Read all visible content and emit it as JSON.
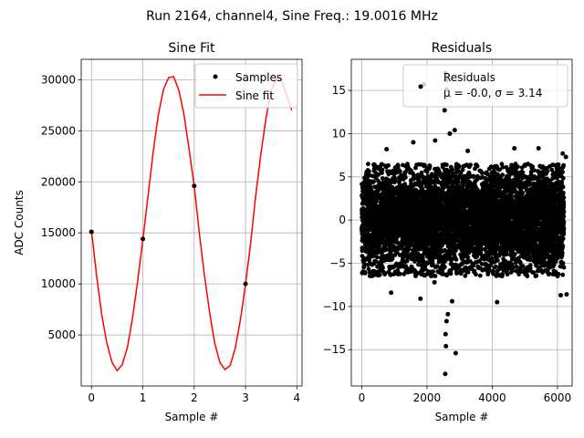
{
  "figure_title": "Run 2164, channel4, Sine Freq.: 19.0016 MHz",
  "colors": {
    "fit": "#ff0000",
    "points": "#000000",
    "grid": "#b0b0b0"
  },
  "chart_data": [
    {
      "type": "line",
      "title": "Sine Fit",
      "xlabel": "Sample #",
      "ylabel": "ADC Counts",
      "xlim": [
        -0.2,
        4.1
      ],
      "ylim": [
        0,
        32000
      ],
      "xticks": [
        0,
        1,
        2,
        3,
        4
      ],
      "yticks": [
        5000,
        10000,
        15000,
        20000,
        25000,
        30000
      ],
      "grid": true,
      "legend": {
        "position": "top-right",
        "entries": [
          "Samples",
          "Sine fit"
        ]
      },
      "series": [
        {
          "name": "Samples",
          "kind": "scatter",
          "x": [
            0,
            1,
            2,
            3
          ],
          "y": [
            15100,
            14400,
            19600,
            10000
          ]
        },
        {
          "name": "Sine fit",
          "kind": "line",
          "x": [
            0,
            0.1,
            0.2,
            0.3,
            0.4,
            0.5,
            0.6,
            0.7,
            0.8,
            0.9,
            1.0,
            1.1,
            1.2,
            1.3,
            1.4,
            1.5,
            1.6,
            1.7,
            1.8,
            1.9,
            2.0,
            2.1,
            2.2,
            2.3,
            2.4,
            2.5,
            2.6,
            2.7,
            2.8,
            2.9,
            3.0,
            3.1,
            3.2,
            3.3,
            3.4,
            3.5,
            3.6,
            3.7,
            3.8,
            3.9
          ],
          "y": [
            15200,
            10800,
            7000,
            4200,
            2300,
            1500,
            2100,
            3800,
            6700,
            10300,
            14300,
            18600,
            22900,
            26500,
            29000,
            30200,
            30300,
            29000,
            26600,
            23200,
            19600,
            15000,
            10800,
            7200,
            4200,
            2300,
            1600,
            2000,
            3700,
            6500,
            10000,
            14000,
            18700,
            22800,
            26300,
            28900,
            30200,
            30000,
            28500,
            27000
          ]
        }
      ]
    },
    {
      "type": "scatter",
      "title": "Residuals",
      "xlabel": "Sample #",
      "ylabel": "",
      "xlim": [
        -320,
        6450
      ],
      "ylim": [
        -19.2,
        18.6
      ],
      "xticks": [
        0,
        2000,
        4000,
        6000
      ],
      "yticks": [
        -15,
        -10,
        -5,
        0,
        5,
        10,
        15
      ],
      "grid": true,
      "legend": {
        "position": "top-right",
        "entries": [
          "Residuals",
          "μ = -0.0, σ = 3.14"
        ]
      },
      "series": [
        {
          "name": "Residuals",
          "n_points": 6200,
          "mean": -0.0,
          "std": 3.14,
          "band": [
            -6.5,
            6.5
          ],
          "outliers": [
            {
              "x": 1900,
              "y": 15.7
            },
            {
              "x": 2560,
              "y": 17.0
            },
            {
              "x": 2580,
              "y": 16.2
            },
            {
              "x": 2600,
              "y": 15.1
            },
            {
              "x": 2540,
              "y": 12.7
            },
            {
              "x": 2700,
              "y": 10.0
            },
            {
              "x": 2850,
              "y": 10.4
            },
            {
              "x": 2560,
              "y": -17.8
            },
            {
              "x": 2580,
              "y": -14.6
            },
            {
              "x": 2880,
              "y": -15.4
            },
            {
              "x": 2570,
              "y": -13.2
            },
            {
              "x": 2600,
              "y": -11.7
            },
            {
              "x": 2640,
              "y": -10.9
            },
            {
              "x": 1800,
              "y": -9.1
            },
            {
              "x": 6100,
              "y": -8.7
            },
            {
              "x": 6280,
              "y": -8.6
            },
            {
              "x": 4150,
              "y": -9.5
            },
            {
              "x": 900,
              "y": -8.4
            },
            {
              "x": 5420,
              "y": 8.3
            },
            {
              "x": 6160,
              "y": 7.7
            },
            {
              "x": 6260,
              "y": 7.3
            },
            {
              "x": 2250,
              "y": 9.2
            },
            {
              "x": 1580,
              "y": 9.0
            },
            {
              "x": 760,
              "y": 8.2
            },
            {
              "x": 3250,
              "y": 8.0
            },
            {
              "x": 4680,
              "y": 8.3
            },
            {
              "x": 2230,
              "y": -7.2
            },
            {
              "x": 2770,
              "y": -9.4
            }
          ]
        }
      ]
    }
  ]
}
